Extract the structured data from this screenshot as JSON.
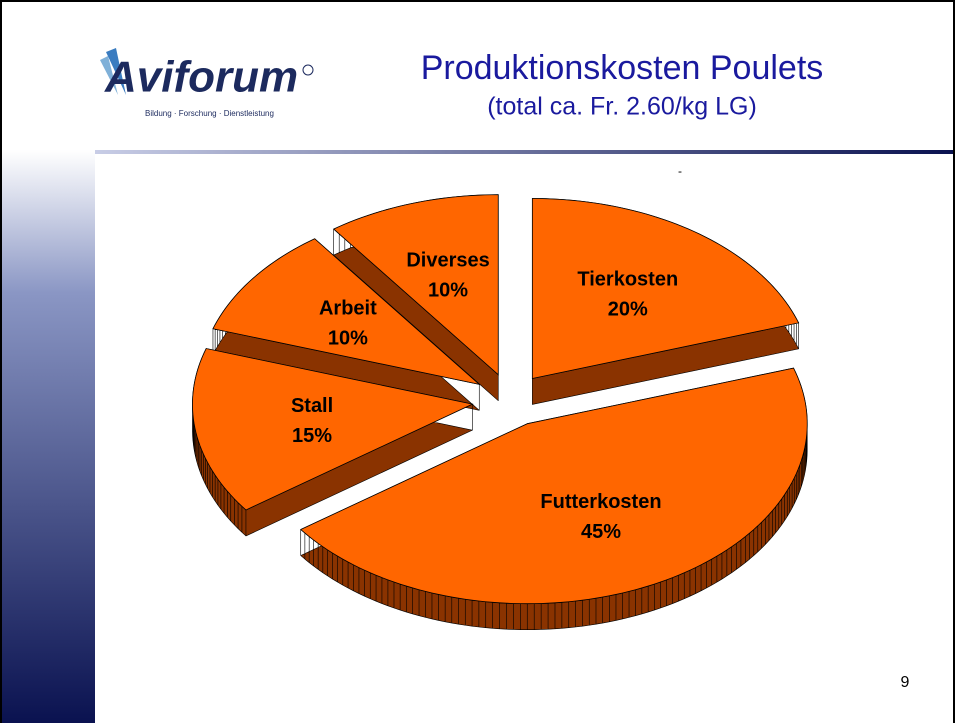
{
  "slide": {
    "logo": {
      "name": "Aviforum",
      "tagline": "Bildung · Forschung · Dienstleistung"
    },
    "page_number": "9"
  },
  "chart_data": {
    "type": "pie",
    "title": "Produktionskosten Poulets",
    "subtitle": "(total ca. Fr. 2.60/kg LG)",
    "annotation": "-",
    "categories": [
      "Tierkosten",
      "Futterkosten",
      "Stall",
      "Arbeit",
      "Diverses"
    ],
    "values": [
      20,
      45,
      15,
      10,
      10
    ],
    "value_labels": [
      "20%",
      "45%",
      "15%",
      "10%",
      "10%"
    ],
    "color": "#ff6600",
    "side_color": "#8a3300",
    "exploded": true,
    "three_d": true
  }
}
